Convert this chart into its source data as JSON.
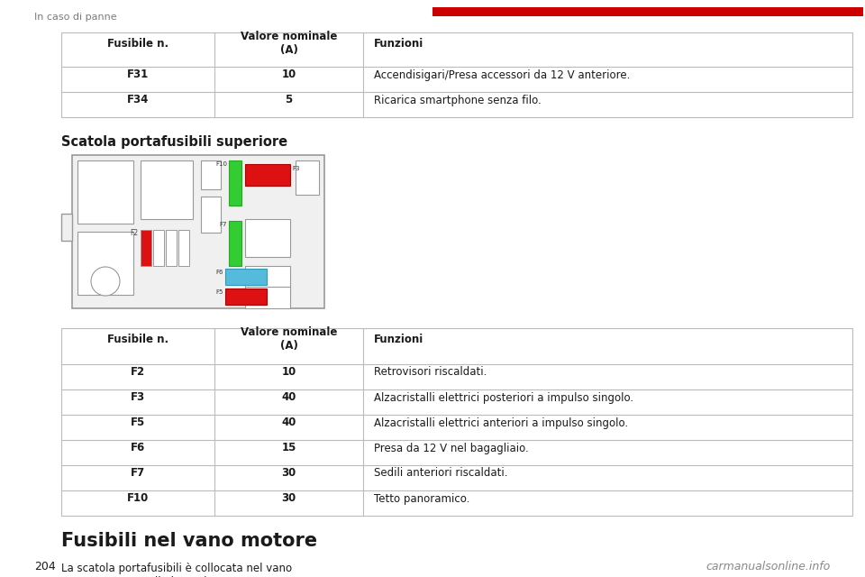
{
  "page_header": "In caso di panne",
  "page_number": "204",
  "watermark": "carmanualsonline.info",
  "table1_headers": [
    "Fusibile n.",
    "Valore nominale\n(A)",
    "Funzioni"
  ],
  "table1_rows": [
    [
      "F31",
      "10",
      "Accendisigari/Presa accessori da 12 V anteriore."
    ],
    [
      "F34",
      "5",
      "Ricarica smartphone senza filo."
    ]
  ],
  "section_title": "Scatola portafusibili superiore",
  "table2_headers": [
    "Fusibile n.",
    "Valore nominale\n(A)",
    "Funzioni"
  ],
  "table2_rows": [
    [
      "F2",
      "10",
      "Retrovisori riscaldati."
    ],
    [
      "F3",
      "40",
      "Alzacristalli elettrici posteriori a impulso singolo."
    ],
    [
      "F5",
      "40",
      "Alzacristalli elettrici anteriori a impulso singolo."
    ],
    [
      "F6",
      "15",
      "Presa da 12 V nel bagagliaio."
    ],
    [
      "F7",
      "30",
      "Sedili anteriori riscaldati."
    ],
    [
      "F10",
      "30",
      "Tetto panoramico."
    ]
  ],
  "footer_title": "Fusibili nel vano motore",
  "footer_text": "La scatola portafusibili è collocata nel vano\nmotore accanto alla batteria.",
  "bg_color": "#ffffff",
  "header_text_color": "#7a7a7a",
  "red_color": "#cc0000",
  "text_color": "#1a1a1a",
  "table_line_color": "#bbbbbb",
  "fuse_red": "#dd1111",
  "fuse_green": "#33cc33",
  "fuse_cyan": "#55bbdd",
  "diagram_bg": "#f0f0f0",
  "diagram_border": "#999999"
}
